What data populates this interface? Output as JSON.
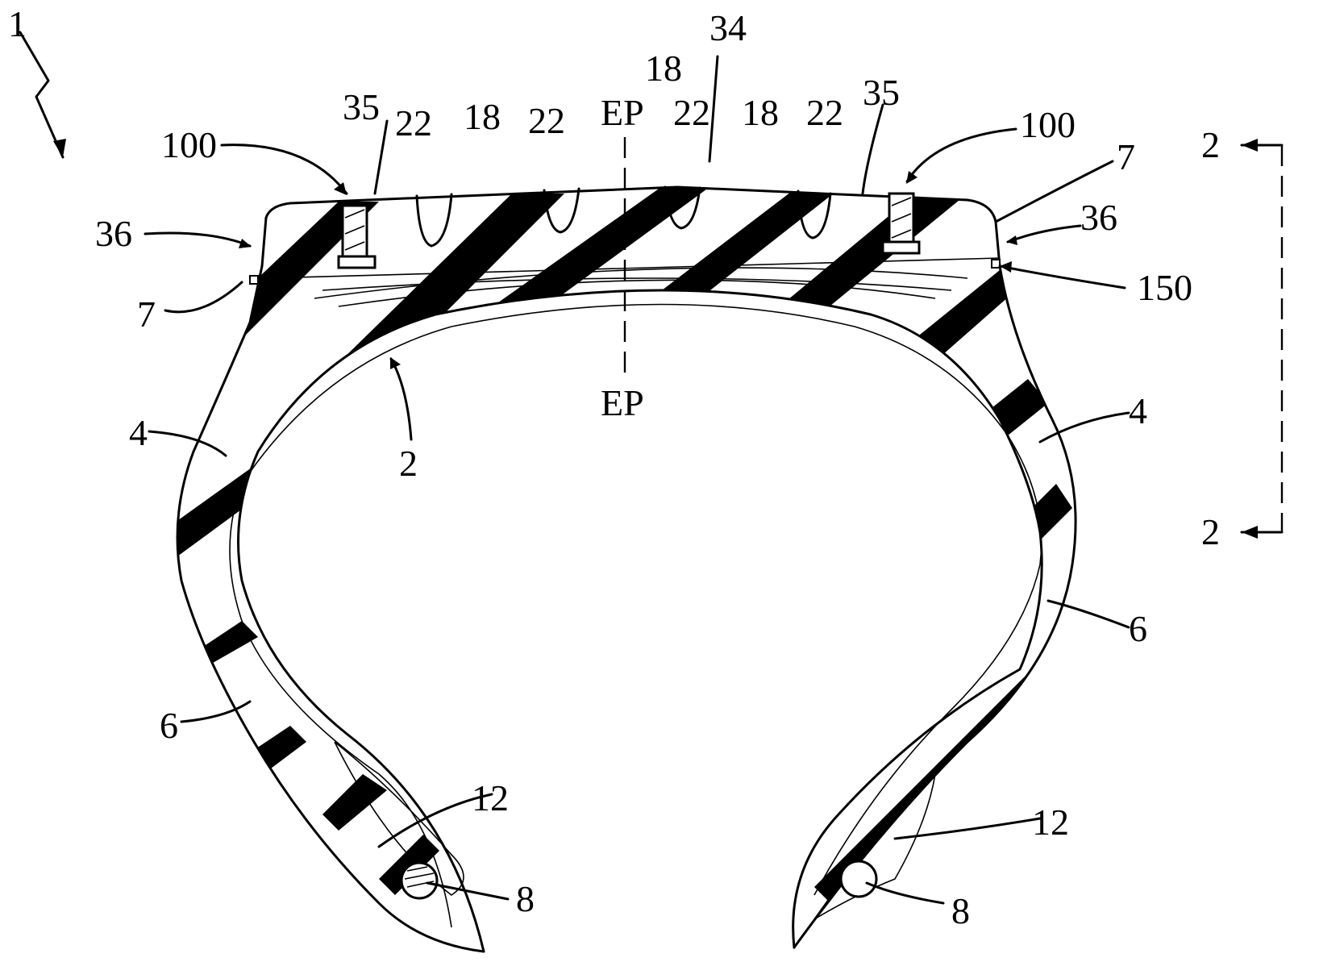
{
  "figure": {
    "labels": {
      "tire": "1",
      "crown": "34",
      "sidewall_upper_left": "4",
      "sidewall_upper_right": "4",
      "sidewall_lower_left": "6",
      "sidewall_lower_right": "6",
      "bead_left": "8",
      "bead_right": "8",
      "apex_left": "12",
      "apex_right": "12",
      "ply": "2",
      "rib_a": "18",
      "rib_b": "18",
      "rib_c": "18",
      "groove_a": "22",
      "groove_b": "22",
      "groove_c": "22",
      "groove_d": "22",
      "shoulder_left": "35",
      "shoulder_right": "35",
      "edge_left": "36",
      "edge_right": "36",
      "belt_edge_left": "7",
      "belt_edge_right": "7",
      "sensor_left": "100",
      "sensor_right": "100",
      "wire": "150",
      "equatorial_top": "EP",
      "equatorial_bottom": "EP",
      "section_top": "2",
      "section_bottom": "2"
    }
  }
}
